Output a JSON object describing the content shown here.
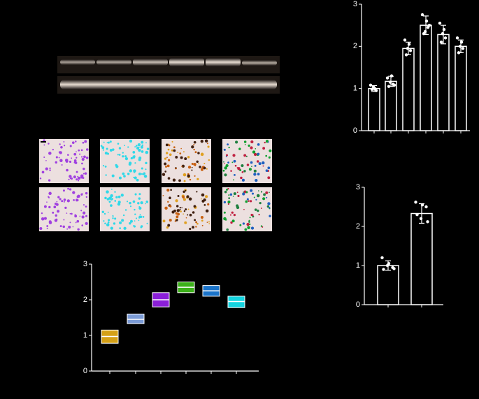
{
  "chart_data": [
    {
      "type": "bar",
      "categories": [
        null,
        null,
        null,
        null,
        null,
        null
      ],
      "values": [
        1.0,
        1.17,
        1.95,
        2.5,
        2.28,
        2.0
      ],
      "errors": [
        0.07,
        0.12,
        0.15,
        0.22,
        0.22,
        0.15
      ],
      "points": [
        [
          1.08,
          1.0,
          0.95,
          0.98,
          1.04
        ],
        [
          1.25,
          1.3,
          1.1,
          1.05,
          1.15,
          1.08
        ],
        [
          2.15,
          2.05,
          1.9,
          1.8,
          1.95
        ],
        [
          2.75,
          2.6,
          2.45,
          2.3,
          2.35,
          2.5
        ],
        [
          2.55,
          2.4,
          2.2,
          2.1,
          2.3
        ],
        [
          2.2,
          2.1,
          1.95,
          1.85,
          2.0
        ]
      ],
      "color": "#ffffff",
      "ylim": [
        0,
        3
      ],
      "yticks": [
        0,
        1,
        2,
        3
      ]
    },
    {
      "type": "bar",
      "categories": [
        null,
        null
      ],
      "values": [
        1.0,
        2.33
      ],
      "errors": [
        0.12,
        0.25
      ],
      "points": [
        [
          1.2,
          1.05,
          0.95,
          0.9,
          1.0,
          0.92
        ],
        [
          2.62,
          2.55,
          2.5,
          2.3,
          2.2,
          2.12
        ]
      ],
      "color": "#ffffff",
      "ylim": [
        0,
        3
      ],
      "yticks": [
        0,
        1,
        2,
        3
      ]
    },
    {
      "type": "box",
      "categories": [
        null,
        null,
        null,
        null,
        null,
        null
      ],
      "values": [
        0.97,
        1.45,
        2.0,
        2.35,
        2.25,
        1.95
      ],
      "low": [
        0.78,
        1.33,
        1.8,
        2.2,
        2.1,
        1.78
      ],
      "high": [
        1.15,
        1.6,
        2.2,
        2.5,
        2.4,
        2.1
      ],
      "colors": [
        "#d4a017",
        "#7b9bd6",
        "#8b1fd8",
        "#3cb01a",
        "#1a73c9",
        "#14d4e0"
      ],
      "ylim": [
        0,
        3
      ],
      "yticks": [
        0,
        1,
        2,
        3
      ]
    }
  ]
}
